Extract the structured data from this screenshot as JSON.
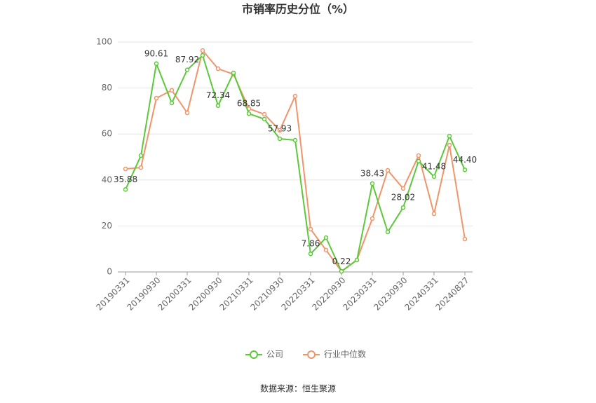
{
  "chart_data": {
    "type": "line",
    "title": "市销率历史分位（%）",
    "categories": [
      "20190331",
      null,
      "20190930",
      null,
      "20200331",
      null,
      "20200930",
      null,
      "20210331",
      null,
      "20210930",
      null,
      "20220331",
      null,
      "20220930",
      null,
      "20230331",
      null,
      "20230930",
      null,
      "20240331",
      null,
      "20240827"
    ],
    "series": [
      {
        "name": "公司",
        "color": "#5cc83a",
        "values": [
          35.88,
          50.6,
          90.61,
          73.5,
          87.92,
          94.2,
          72.34,
          86.6,
          68.85,
          66.5,
          57.93,
          57.3,
          7.86,
          14.9,
          0.22,
          5.2,
          38.43,
          17.4,
          28.02,
          48.2,
          41.48,
          59.1,
          44.4
        ],
        "value_labels": [
          "35.88",
          null,
          "90.61",
          null,
          "87.92",
          null,
          "72.34",
          null,
          "68.85",
          null,
          "57.93",
          null,
          "7.86",
          null,
          "0.22",
          null,
          "38.43",
          null,
          "28.02",
          null,
          "41.48",
          null,
          "44.40"
        ]
      },
      {
        "name": "行业中位数",
        "color": "#f0956a",
        "values": [
          44.8,
          45.4,
          75.6,
          79.0,
          69.2,
          96.3,
          88.4,
          86.0,
          71.0,
          68.6,
          61.6,
          76.5,
          18.6,
          9.5,
          0.3,
          5.2,
          23.2,
          44.2,
          36.3,
          50.6,
          25.3,
          55.2,
          14.3
        ]
      }
    ],
    "ylim": [
      0,
      100
    ],
    "yticks": [
      0,
      20,
      40,
      60,
      80,
      100
    ],
    "grid": true,
    "source": "数据来源：恒生聚源"
  }
}
